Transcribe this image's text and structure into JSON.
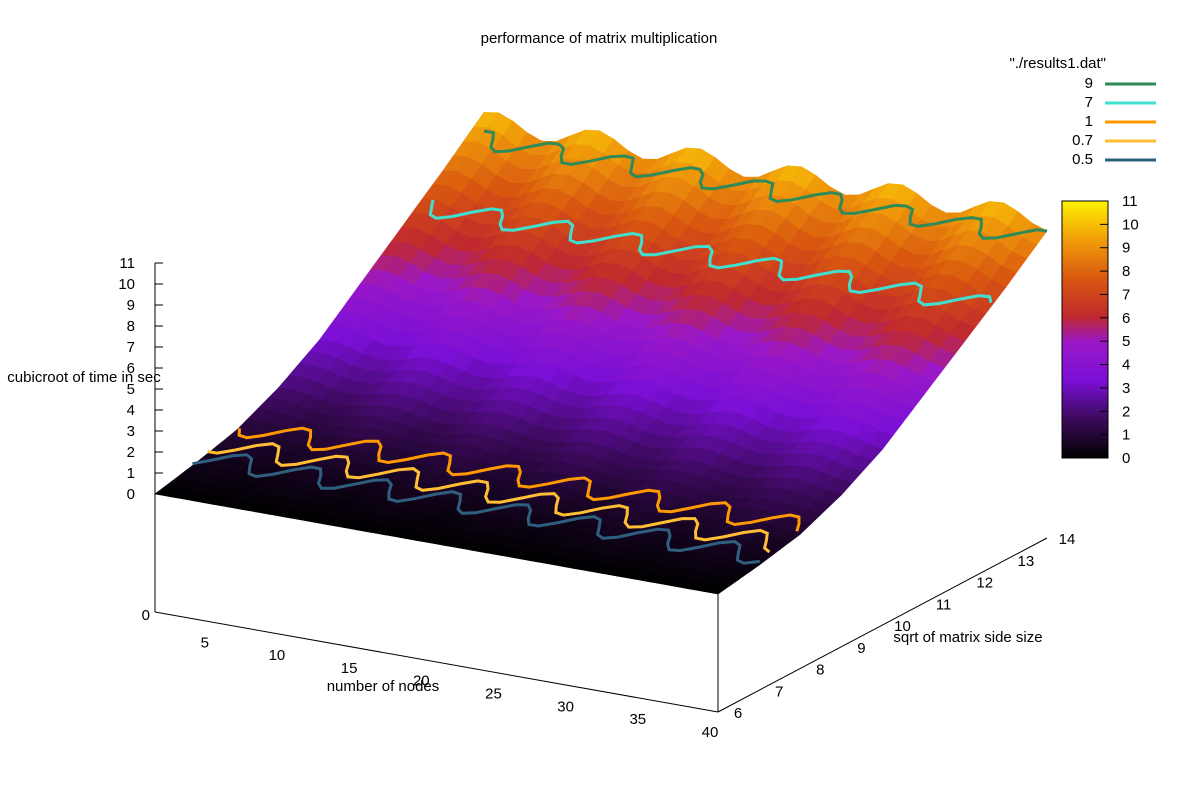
{
  "chart_data": {
    "type": "surface",
    "title": "performance of matrix multiplication",
    "xlabel": "number of nodes",
    "ylabel": "sqrt of matrix side size",
    "zlabel": "cubicroot of time in sec",
    "xlim": [
      1,
      40
    ],
    "ylim": [
      6,
      14
    ],
    "zlim": [
      0,
      11
    ],
    "xticks": [
      "5",
      "10",
      "15",
      "20",
      "25",
      "30",
      "35",
      "40"
    ],
    "yticks": [
      "6",
      "7",
      "8",
      "9",
      "10",
      "11",
      "12",
      "13",
      "14"
    ],
    "zticks": [
      "0",
      "1",
      "2",
      "3",
      "4",
      "5",
      "6",
      "7",
      "8",
      "9",
      "10",
      "11"
    ],
    "base_label": "0",
    "legend": {
      "title": "\"./results1.dat\"",
      "position": "top-right",
      "entries": [
        {
          "label": "9",
          "color": "#2e8b57"
        },
        {
          "label": "7",
          "color": "#40e0d0"
        },
        {
          "label": "1",
          "color": "#ff9900"
        },
        {
          "label": "0.7",
          "color": "#ffbe33"
        },
        {
          "label": "0.5",
          "color": "#2f5f7f"
        }
      ]
    },
    "colorbox": {
      "range": [
        0,
        11
      ],
      "ticks": [
        "0",
        "1",
        "2",
        "3",
        "4",
        "5",
        "6",
        "7",
        "8",
        "9",
        "10",
        "11"
      ]
    },
    "surface_profile": {
      "y": [
        6,
        7,
        8,
        9,
        10,
        11,
        12,
        13,
        14
      ],
      "z": [
        0,
        0.4,
        0.9,
        1.8,
        3.0,
        4.6,
        6.2,
        7.8,
        9.5
      ]
    }
  }
}
